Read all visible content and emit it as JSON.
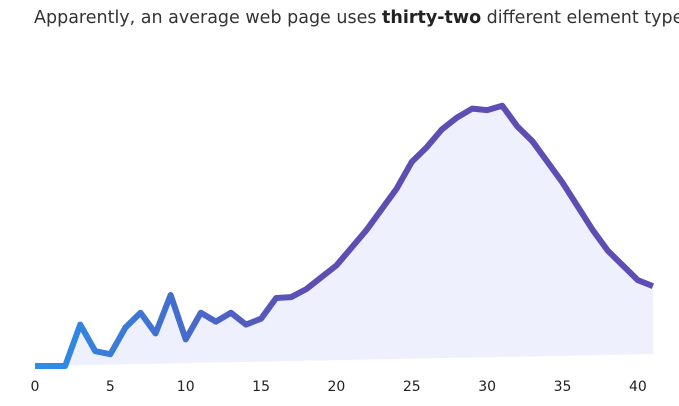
{
  "caption": {
    "before": "Apparently, an average web page uses ",
    "emphasis": "thirty-two",
    "after": " different element types:"
  },
  "chart_data": {
    "type": "line",
    "x": [
      0,
      2,
      3,
      4,
      5,
      6,
      7,
      8,
      9,
      10,
      11,
      12,
      13,
      14,
      15,
      16,
      17,
      18,
      19,
      20,
      21,
      22,
      23,
      24,
      25,
      26,
      27,
      28,
      29,
      30,
      31,
      32,
      33,
      34,
      35,
      36,
      37,
      38,
      39,
      40,
      41
    ],
    "values": [
      0,
      0,
      14,
      5,
      4,
      13,
      18,
      11,
      24,
      9,
      18,
      15,
      18,
      14,
      16,
      23,
      23.3,
      26,
      30,
      34,
      40,
      46,
      53,
      60,
      69,
      74,
      80,
      84,
      87,
      86.5,
      88,
      81,
      76,
      69,
      62,
      54,
      46,
      39,
      34,
      29,
      27
    ],
    "xticks": [
      "0",
      "5",
      "10",
      "15",
      "20",
      "25",
      "30",
      "35",
      "40"
    ],
    "xlim": [
      0,
      41.6
    ],
    "ylim": [
      0,
      95
    ],
    "xlabel": "",
    "ylabel": "",
    "grid": false,
    "colors": {
      "line_start": "#2a8fe8",
      "line_end": "#5e4db3",
      "fill": "#eef0fd"
    }
  }
}
